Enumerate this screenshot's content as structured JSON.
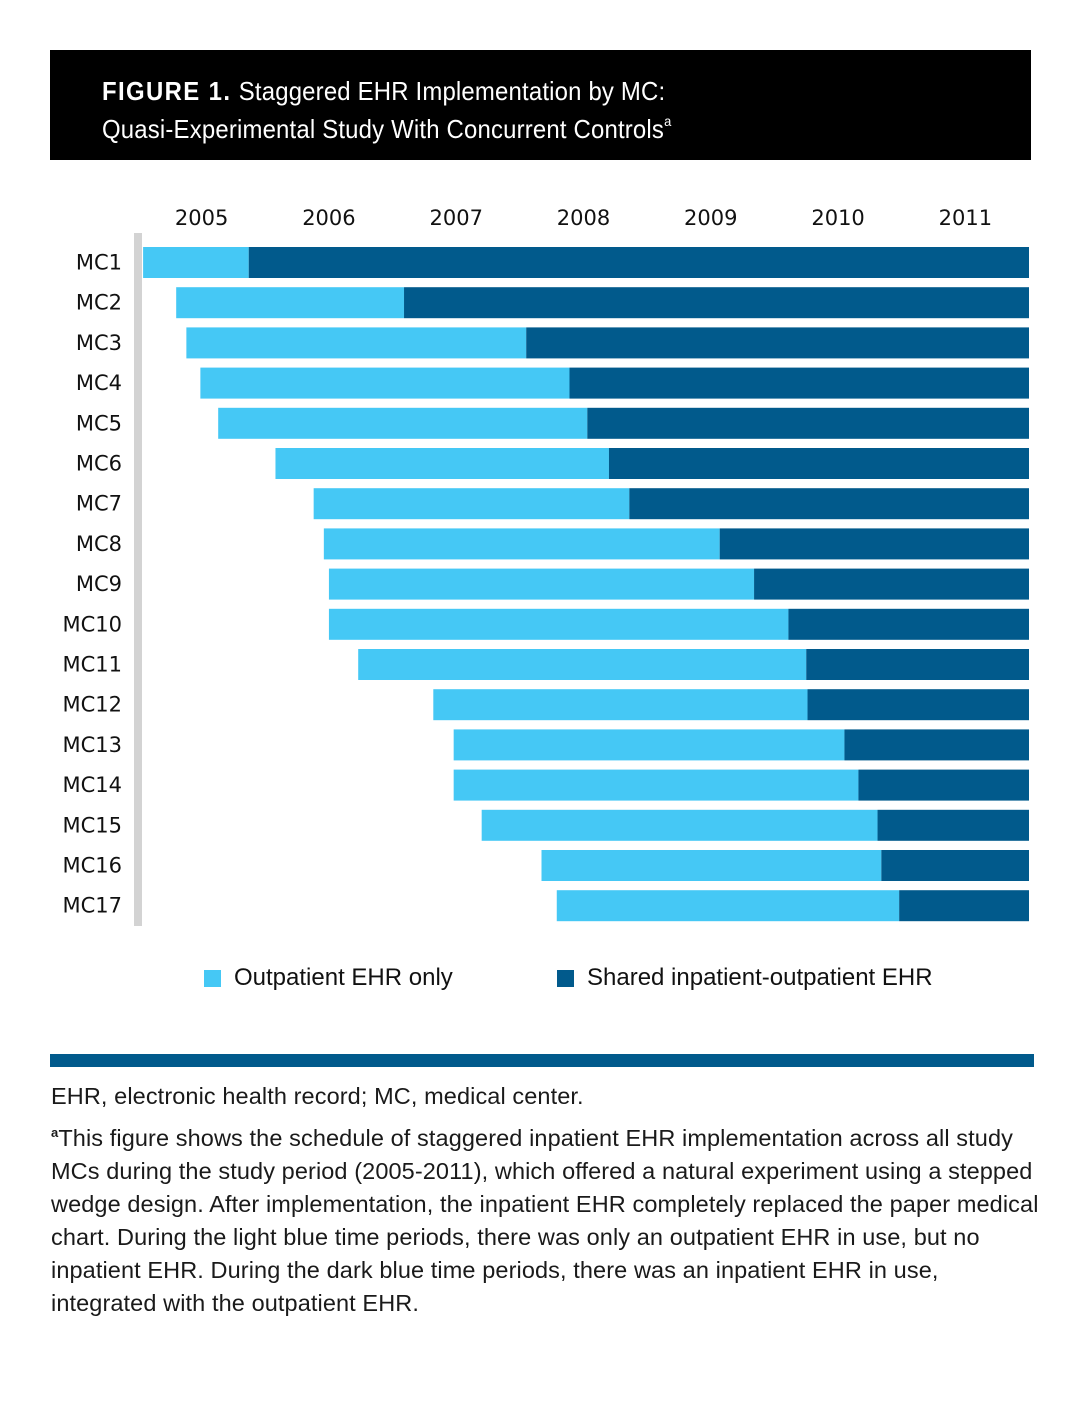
{
  "header": {
    "figure_label": "FIGURE 1.",
    "title_line1": "Staggered EHR Implementation by MC:",
    "title_line2": "Quasi-Experimental Study With Concurrent Controls",
    "title_superscript": "a"
  },
  "colors": {
    "outpatient": "#45c8f5",
    "shared": "#015a8c",
    "axis_line": "#d3d3d3",
    "header_bg": "#000000",
    "rule": "#015a8c"
  },
  "chart_data": {
    "type": "bar",
    "orientation": "horizontal-gantt",
    "title": "Staggered EHR Implementation by MC: Quasi-Experimental Study With Concurrent Controls",
    "xlabel": "",
    "ylabel": "",
    "x_ticks": [
      "2005",
      "2006",
      "2007",
      "2008",
      "2009",
      "2010",
      "2011"
    ],
    "x_tick_position": "top, centered within each year",
    "xlim": [
      2005.0,
      2012.0
    ],
    "grid": false,
    "legend_position": "bottom",
    "categories": [
      "MC1",
      "MC2",
      "MC3",
      "MC4",
      "MC5",
      "MC6",
      "MC7",
      "MC8",
      "MC9",
      "MC10",
      "MC11",
      "MC12",
      "MC13",
      "MC14",
      "MC15",
      "MC16",
      "MC17"
    ],
    "series": [
      {
        "name": "Outpatient EHR only",
        "color": "#45c8f5",
        "start": [
          2005.04,
          2005.3,
          2005.38,
          2005.49,
          2005.63,
          2006.08,
          2006.38,
          2006.46,
          2006.5,
          2006.5,
          2006.73,
          2007.32,
          2007.48,
          2007.48,
          2007.7,
          2008.17,
          2008.29
        ],
        "end": [
          2005.87,
          2007.09,
          2008.05,
          2008.39,
          2008.53,
          2008.7,
          2008.86,
          2009.57,
          2009.84,
          2010.11,
          2010.25,
          2010.26,
          2010.55,
          2010.66,
          2010.81,
          2010.84,
          2010.98
        ]
      },
      {
        "name": "Shared inpatient-outpatient EHR",
        "color": "#015a8c",
        "start": [
          2005.87,
          2007.09,
          2008.05,
          2008.39,
          2008.53,
          2008.7,
          2008.86,
          2009.57,
          2009.84,
          2010.11,
          2010.25,
          2010.26,
          2010.55,
          2010.66,
          2010.81,
          2010.84,
          2010.98
        ],
        "end": [
          2012.0,
          2012.0,
          2012.0,
          2012.0,
          2012.0,
          2012.0,
          2012.0,
          2012.0,
          2012.0,
          2012.0,
          2012.0,
          2012.0,
          2012.0,
          2012.0,
          2012.0,
          2012.0,
          2012.0
        ]
      }
    ]
  },
  "legend": {
    "items": [
      {
        "label": "Outpatient EHR only",
        "color": "#45c8f5"
      },
      {
        "label": "Shared inpatient-outpatient EHR",
        "color": "#015a8c"
      }
    ]
  },
  "footnotes": {
    "abbreviations": "EHR, electronic health record; MC, medical center.",
    "note_marker": "a",
    "note_text": "This figure shows the schedule of staggered inpatient EHR implementation across all study MCs during the study period (2005-2011), which offered a natural experiment using a stepped wedge design. After implementation, the inpatient EHR completely replaced the paper medical chart. During the light blue time periods, there was only an outpatient EHR in use, but no inpatient EHR. During the dark blue time periods, there was an inpatient EHR in use, integrated with the outpatient EHR."
  }
}
